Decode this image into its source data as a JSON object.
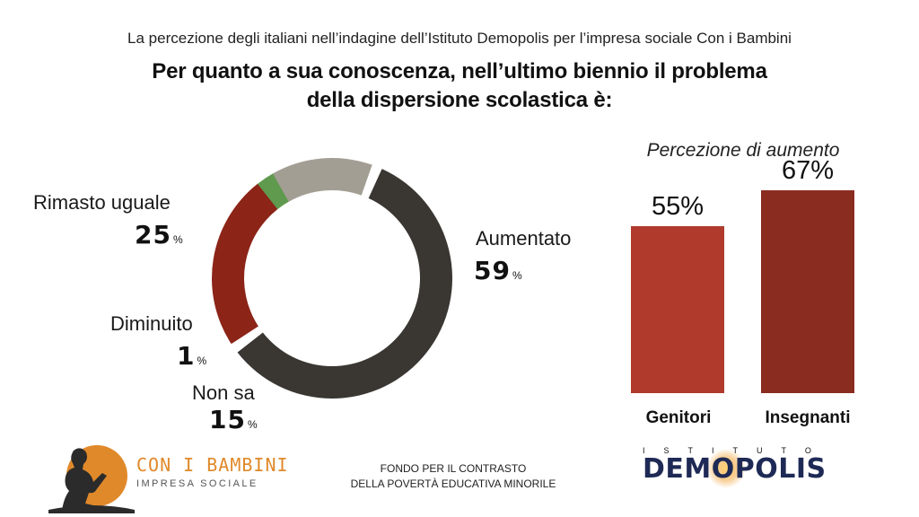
{
  "header": {
    "supertitle": "La percezione degli italiani nell’indagine dell’Istituto Demopolis per l’impresa sociale Con i Bambini",
    "title_line1": "Per quanto a sua conoscenza, nell’ultimo biennio il problema",
    "title_line2": "della dispersione scolastica è:"
  },
  "donut_labels": {
    "aumentato": {
      "label": "Aumentato",
      "value": "59",
      "unit": "%"
    },
    "rimasto": {
      "label": "Rimasto uguale",
      "value": "25",
      "unit": "%"
    },
    "diminuito": {
      "label": "Diminuito",
      "value": "1",
      "unit": "%"
    },
    "nonsa": {
      "label": "Non sa",
      "value": "15",
      "unit": "%"
    }
  },
  "bar_labels": {
    "title": "Percezione di aumento",
    "genitori": {
      "label": "Genitori",
      "value": "55%"
    },
    "insegnanti": {
      "label": "Insegnanti",
      "value": "67%"
    }
  },
  "footer": {
    "conibambini_name": "CON I BAMBINI",
    "conibambini_sub": "IMPRESA SOCIALE",
    "fondo_line1": "FONDO PER IL CONTRASTO",
    "fondo_line2": "DELLA POVERTÀ EDUCATIVA MINORILE",
    "istituto": "ISTITUTO",
    "demopolis": "DEMOPOLIS"
  },
  "colors": {
    "aumentato": "#3a3632",
    "rimasto": "#8c2418",
    "diminuito": "#5f9a4e",
    "nonsa": "#a39e94",
    "genitori": "#b03a2c",
    "insegnanti": "#8a2c20",
    "brand_orange": "#e0892a",
    "brand_navy": "#1e2a55"
  },
  "chart_data": [
    {
      "type": "pie",
      "variant": "donut",
      "title": "Per quanto a sua conoscenza, nell’ultimo biennio il problema della dispersione scolastica è:",
      "categories": [
        "Aumentato",
        "Rimasto uguale",
        "Diminuito",
        "Non sa"
      ],
      "values": [
        59,
        25,
        1,
        15
      ],
      "unit": "%"
    },
    {
      "type": "bar",
      "title": "Percezione di aumento",
      "categories": [
        "Genitori",
        "Insegnanti"
      ],
      "values": [
        55,
        67
      ],
      "unit": "%",
      "grid": false
    }
  ]
}
